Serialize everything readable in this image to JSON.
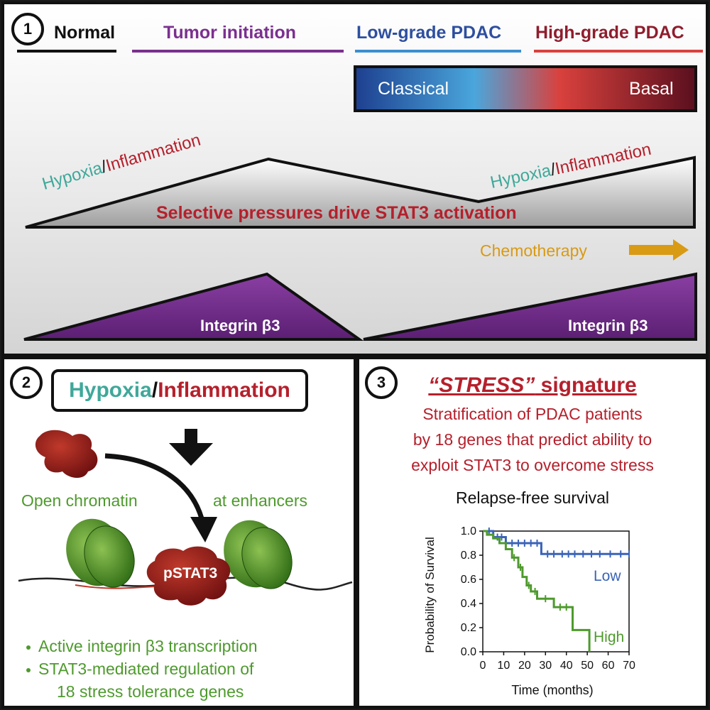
{
  "panel1": {
    "number": "1",
    "stages": {
      "normal": "Normal",
      "tumor_initiation": "Tumor initiation",
      "low_grade": "Low-grade PDAC",
      "high_grade": "High-grade PDAC"
    },
    "subtype_bar": {
      "left": "Classical",
      "right": "Basal"
    },
    "hypoxia": "Hypoxia",
    "slash": "/",
    "inflammation": "Inflammation",
    "pressure_text": "Selective pressures drive STAT3 activation",
    "chemotherapy": "Chemotherapy",
    "integrin": "Integrin β3"
  },
  "panel2": {
    "number": "2",
    "hypoxia": "Hypoxia",
    "slash": "/",
    "inflammation": "Inflammation",
    "open_chromatin": "Open chromatin",
    "at_enhancers": "at enhancers",
    "pstat3": "pSTAT3",
    "bullets": [
      "Active integrin β3 transcription",
      "STAT3-mediated regulation of",
      "18 stress tolerance genes"
    ]
  },
  "panel3": {
    "number": "3",
    "title_quoted": "“STRESS”",
    "title_rest": " signature",
    "description": [
      "Stratification of PDAC patients",
      "by 18 genes that predict ability to",
      "exploit STAT3 to overcome stress"
    ]
  },
  "colors": {
    "teal": "#3fa89a",
    "crimson": "#b5202c",
    "purple": "#7b2f8f",
    "blue": "#3a63b8",
    "red": "#d9413d",
    "green": "#4e9a2d",
    "orange": "#d99a14"
  },
  "chart_data": {
    "type": "line",
    "title": "Relapse-free survival",
    "xlabel": "Time (months)",
    "ylabel": "Probability of Survival",
    "xlim": [
      0,
      70
    ],
    "ylim": [
      0,
      1.0
    ],
    "xticks": [
      0,
      10,
      20,
      30,
      40,
      50,
      60,
      70
    ],
    "yticks": [
      "0.0",
      "0.2",
      "0.4",
      "0.6",
      "0.8",
      "1.0"
    ],
    "series": [
      {
        "name": "Low",
        "color": "#3a63b8",
        "x": [
          0,
          5,
          5,
          11,
          11,
          28,
          28,
          70
        ],
        "y": [
          1.0,
          1.0,
          0.95,
          0.95,
          0.9,
          0.9,
          0.81,
          0.81
        ],
        "censor_x": [
          3,
          7,
          9,
          14,
          17,
          20,
          23,
          26,
          31,
          34,
          38,
          41,
          44,
          48,
          52,
          56,
          61,
          66,
          70
        ]
      },
      {
        "name": "High",
        "color": "#4e9a2d",
        "x": [
          0,
          2,
          2,
          5,
          5,
          8,
          8,
          11,
          11,
          14,
          14,
          17,
          17,
          19,
          19,
          21,
          21,
          23,
          23,
          26,
          26,
          34,
          34,
          43,
          43,
          51,
          51
        ],
        "y": [
          1.0,
          1.0,
          0.97,
          0.97,
          0.94,
          0.94,
          0.9,
          0.9,
          0.85,
          0.85,
          0.78,
          0.78,
          0.7,
          0.7,
          0.62,
          0.62,
          0.55,
          0.55,
          0.5,
          0.5,
          0.44,
          0.44,
          0.37,
          0.37,
          0.18,
          0.18,
          0.0
        ],
        "censor_x": [
          15,
          18,
          22,
          25,
          30,
          37,
          40
        ]
      }
    ]
  }
}
